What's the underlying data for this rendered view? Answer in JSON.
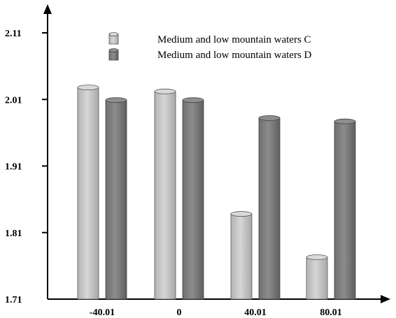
{
  "chart_data": {
    "type": "bar",
    "style": "3d-cylinder",
    "categories": [
      "-40.01",
      "0",
      "40.01",
      "80.01"
    ],
    "series": [
      {
        "name": "Medium and low mountain waters C",
        "values": [
          2.028,
          2.022,
          1.838,
          1.773
        ],
        "color": "#c4c4c4"
      },
      {
        "name": "Medium and low mountain waters D",
        "values": [
          2.009,
          2.009,
          1.982,
          1.977
        ],
        "color": "#7d7d7d"
      }
    ],
    "yticks": [
      "1.71",
      "1.81",
      "1.91",
      "2.01",
      "2.11"
    ],
    "ylim": [
      1.71,
      2.11
    ],
    "grid": false,
    "legend_position": "top-right"
  }
}
